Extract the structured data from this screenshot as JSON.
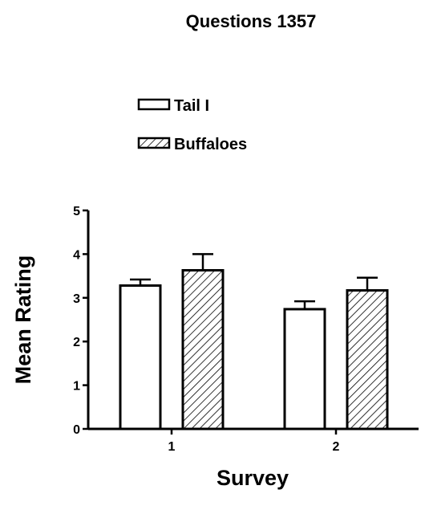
{
  "chart_data": {
    "type": "bar",
    "title": "Questions 1357",
    "xlabel": "Survey",
    "ylabel": "Mean Rating",
    "categories": [
      "1",
      "2"
    ],
    "ylim": [
      0,
      5
    ],
    "yticks": [
      "0",
      "1",
      "2",
      "3",
      "4",
      "5"
    ],
    "series": [
      {
        "name": "Tail I",
        "values": [
          3.28,
          2.74
        ],
        "errors": [
          0.14,
          0.18
        ],
        "fill": "open"
      },
      {
        "name": "Buffaloes",
        "values": [
          3.63,
          3.17
        ],
        "errors": [
          0.37,
          0.29
        ],
        "fill": "hatched"
      }
    ],
    "legend_position": "top",
    "grid": false
  }
}
